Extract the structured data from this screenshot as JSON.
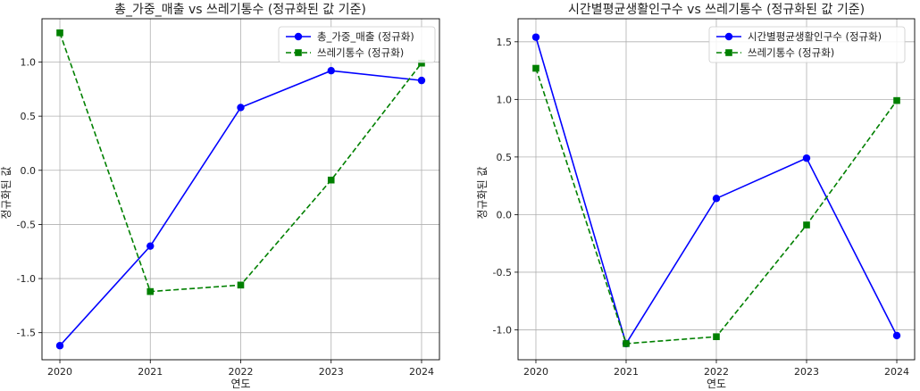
{
  "chart_data": [
    {
      "type": "line",
      "title": "총_가중_매출 vs 쓰레기통수 (정규화된 값 기준)",
      "xlabel": "연도",
      "ylabel": "정규화된 값",
      "categories": [
        "2020",
        "2021",
        "2022",
        "2023",
        "2024"
      ],
      "ylim": [
        -1.75,
        1.4
      ],
      "yticks": [
        -1.5,
        -1.0,
        -0.5,
        0.0,
        0.5,
        1.0
      ],
      "ytick_labels": [
        "-1.5",
        "-1.0",
        "-0.5",
        "0.0",
        "0.5",
        "1.0"
      ],
      "grid": true,
      "legend_position": "top-right",
      "series": [
        {
          "name": "총_가중_매출 (정규화)",
          "values": [
            -1.62,
            -0.7,
            0.58,
            0.92,
            0.83
          ],
          "color": "#0000ff",
          "marker": "circle",
          "linestyle": "solid"
        },
        {
          "name": "쓰레기통수 (정규화)",
          "values": [
            1.27,
            -1.12,
            -1.06,
            -0.09,
            0.99
          ],
          "color": "#008000",
          "marker": "square",
          "linestyle": "dashed"
        }
      ]
    },
    {
      "type": "line",
      "title": "시간별평균생활인구수 vs 쓰레기통수 (정규화된 값 기준)",
      "xlabel": "연도",
      "ylabel": "정규화된 값",
      "categories": [
        "2020",
        "2021",
        "2022",
        "2023",
        "2024"
      ],
      "ylim": [
        -1.26,
        1.7
      ],
      "yticks": [
        -1.0,
        -0.5,
        0.0,
        0.5,
        1.0,
        1.5
      ],
      "ytick_labels": [
        "-1.0",
        "-0.5",
        "0.0",
        "0.5",
        "1.0",
        "1.5"
      ],
      "grid": true,
      "legend_position": "top-right",
      "series": [
        {
          "name": "시간별평균생활인구수 (정규화)",
          "values": [
            1.54,
            -1.12,
            0.14,
            0.49,
            -1.05
          ],
          "color": "#0000ff",
          "marker": "circle",
          "linestyle": "solid"
        },
        {
          "name": "쓰레기통수 (정규화)",
          "values": [
            1.27,
            -1.12,
            -1.06,
            -0.09,
            0.99
          ],
          "color": "#008000",
          "marker": "square",
          "linestyle": "dashed"
        }
      ]
    }
  ]
}
